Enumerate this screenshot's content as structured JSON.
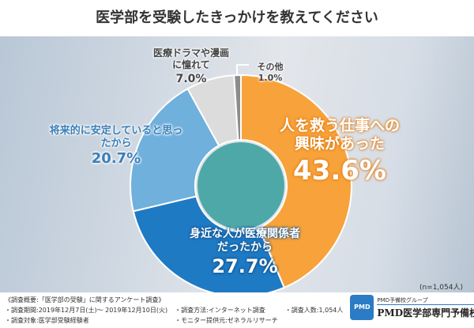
{
  "chart_data": {
    "type": "pie",
    "title": "医学部を受験したきっかけを教えてください",
    "categories": [
      "人を救う仕事への興味があった",
      "身近な人が医療関係者だったから",
      "将来的に安定していると思ったから",
      "医療ドラマや漫画に憧れて",
      "その他"
    ],
    "values": [
      43.6,
      27.7,
      20.7,
      7.0,
      1.0
    ],
    "value_labels": [
      "43.6%",
      "27.7%",
      "20.7%",
      "7.0%",
      "1.0%"
    ],
    "colors": [
      "#f7a23b",
      "#1f7ac4",
      "#6fb0dc",
      "#dcdcdc",
      "#8c8c8c"
    ],
    "donut": true,
    "sample_note": "(n=1,054人)"
  },
  "footer": {
    "summary": "《調査概要:「医学部の受験」に関するアンケート調査》",
    "period": "・調査期間:2019年12月7日(土)～ 2019年12月10日(火)",
    "target": "・調査対象:医学部受験経験者",
    "method": "・調査方法:インターネット調査",
    "provider": "・モニター提供元:ゼネラルリサーチ",
    "count": "・調査人数:1,054人",
    "logo_group": "PMD予備校グループ",
    "logo_name": "PMD医学部専門予備校",
    "logo_mark": "PMD"
  }
}
